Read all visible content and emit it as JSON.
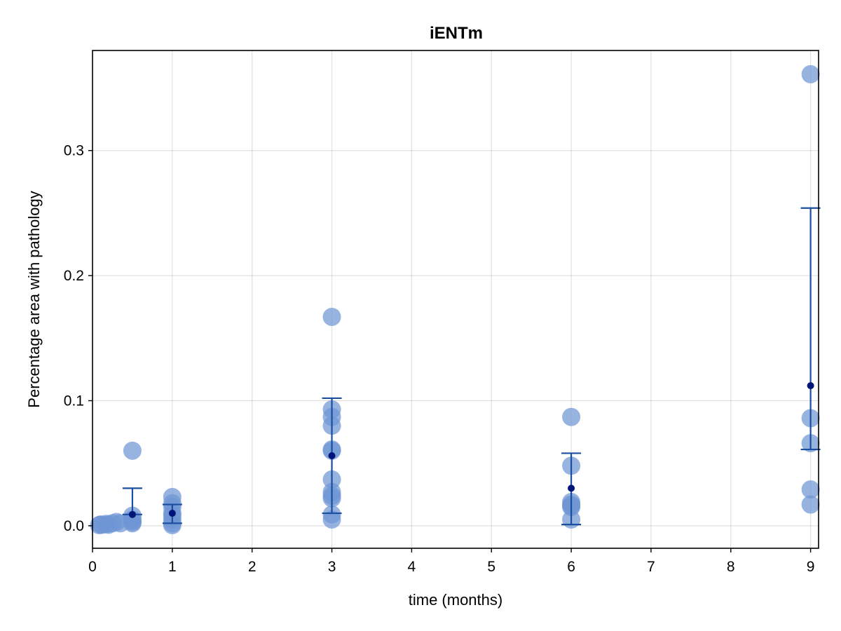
{
  "chart_data": {
    "type": "scatter",
    "title": "iENTm",
    "xlabel": "time (months)",
    "ylabel": "Percentage area with pathology",
    "xlim": [
      0,
      9.1
    ],
    "ylim": [
      -0.018,
      0.38
    ],
    "xticks": [
      0,
      1,
      2,
      3,
      4,
      5,
      6,
      7,
      8,
      9
    ],
    "yticks": [
      0.0,
      0.1,
      0.2,
      0.3
    ],
    "ytick_labels": [
      "0.0",
      "0.1",
      "0.2",
      "0.3"
    ],
    "grid": true,
    "point_color": "#6f96d4",
    "errorbar_color": "#1a4fa0",
    "mean_color": "#00157a",
    "series": [
      {
        "kind": "individual",
        "points": [
          {
            "x": 0.083,
            "y": 0.0005
          },
          {
            "x": 0.1,
            "y": 0.001
          },
          {
            "x": 0.12,
            "y": 0.0008
          },
          {
            "x": 0.17,
            "y": 0.0015
          },
          {
            "x": 0.2,
            "y": 0.0008
          },
          {
            "x": 0.25,
            "y": 0.002
          },
          {
            "x": 0.3,
            "y": 0.003
          },
          {
            "x": 0.35,
            "y": 0.002
          },
          {
            "x": 0.5,
            "y": 0.06
          },
          {
            "x": 0.5,
            "y": 0.008
          },
          {
            "x": 0.5,
            "y": 0.005
          },
          {
            "x": 0.5,
            "y": 0.003
          },
          {
            "x": 0.5,
            "y": 0.002
          },
          {
            "x": 0.5,
            "y": 0.004
          },
          {
            "x": 1,
            "y": 0.023
          },
          {
            "x": 1,
            "y": 0.018
          },
          {
            "x": 1,
            "y": 0.015
          },
          {
            "x": 1,
            "y": 0.01
          },
          {
            "x": 1,
            "y": 0.008
          },
          {
            "x": 1,
            "y": 0.005
          },
          {
            "x": 1,
            "y": 0.002
          },
          {
            "x": 1,
            "y": 0.0005
          },
          {
            "x": 3,
            "y": 0.167
          },
          {
            "x": 3,
            "y": 0.093
          },
          {
            "x": 3,
            "y": 0.087
          },
          {
            "x": 3,
            "y": 0.08
          },
          {
            "x": 3,
            "y": 0.061
          },
          {
            "x": 3,
            "y": 0.06
          },
          {
            "x": 3,
            "y": 0.037
          },
          {
            "x": 3,
            "y": 0.027
          },
          {
            "x": 3,
            "y": 0.024
          },
          {
            "x": 3,
            "y": 0.022
          },
          {
            "x": 3,
            "y": 0.009
          },
          {
            "x": 3,
            "y": 0.005
          },
          {
            "x": 6,
            "y": 0.087
          },
          {
            "x": 6,
            "y": 0.048
          },
          {
            "x": 6,
            "y": 0.019
          },
          {
            "x": 6,
            "y": 0.017
          },
          {
            "x": 6,
            "y": 0.016
          },
          {
            "x": 6,
            "y": 0.015
          },
          {
            "x": 6,
            "y": 0.005
          },
          {
            "x": 9,
            "y": 0.361
          },
          {
            "x": 9,
            "y": 0.086
          },
          {
            "x": 9,
            "y": 0.066
          },
          {
            "x": 9,
            "y": 0.029
          },
          {
            "x": 9,
            "y": 0.017
          }
        ]
      },
      {
        "kind": "mean_with_error",
        "points": [
          {
            "x": 0.5,
            "mean": 0.009,
            "low": 0.009,
            "high": 0.03
          },
          {
            "x": 1,
            "mean": 0.01,
            "low": 0.002,
            "high": 0.017
          },
          {
            "x": 3,
            "mean": 0.056,
            "low": 0.01,
            "high": 0.102
          },
          {
            "x": 6,
            "mean": 0.03,
            "low": 0.001,
            "high": 0.058
          },
          {
            "x": 9,
            "mean": 0.112,
            "low": 0.061,
            "high": 0.254
          }
        ]
      }
    ]
  }
}
